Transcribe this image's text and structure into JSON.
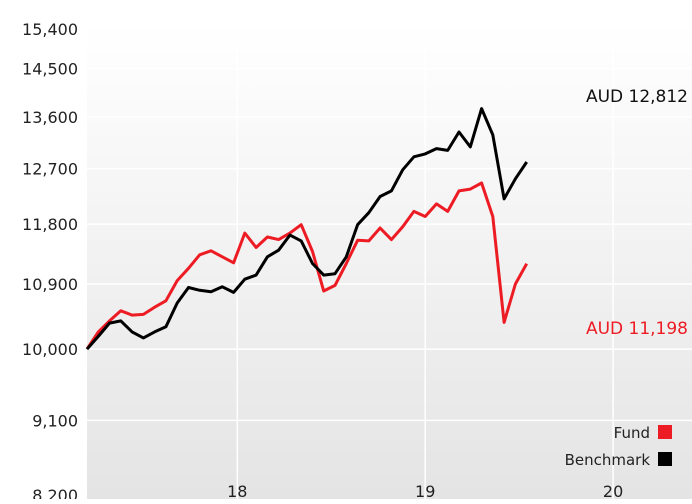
{
  "chart_data": {
    "type": "line",
    "title": "",
    "xlabel": "",
    "ylabel": "",
    "ylim": [
      8200,
      15400
    ],
    "y_scale": "log",
    "y_ticks": [
      8200,
      9100,
      10000,
      10900,
      11800,
      12700,
      13600,
      14500,
      15400
    ],
    "y_tick_labels": [
      "8,200",
      "9,100",
      "10,000",
      "10,900",
      "11,800",
      "12,700",
      "13,600",
      "14,500",
      "15,400"
    ],
    "x_range": [
      2017.2,
      2020.42
    ],
    "x_ticks": [
      2018,
      2019,
      2020
    ],
    "x_tick_labels": [
      "18",
      "19",
      "20"
    ],
    "grid": true,
    "legend_position": "bottom-right",
    "x": [
      2017.2,
      2017.26,
      2017.32,
      2017.38,
      2017.44,
      2017.5,
      2017.56,
      2017.62,
      2017.68,
      2017.74,
      2017.8,
      2017.86,
      2017.92,
      2017.98,
      2018.04,
      2018.1,
      2018.16,
      2018.22,
      2018.28,
      2018.34,
      2018.4,
      2018.46,
      2018.52,
      2018.58,
      2018.64,
      2018.7,
      2018.76,
      2018.82,
      2018.88,
      2018.94,
      2019.0,
      2019.06,
      2019.12,
      2019.18,
      2019.24,
      2019.3,
      2019.36,
      2019.42,
      2019.48,
      2019.54,
      2019.6,
      2019.66,
      2019.72,
      2019.78,
      2019.84,
      2019.9,
      2019.96,
      2020.02,
      2020.08,
      2020.14,
      2020.2,
      2020.26,
      2020.32,
      2020.38,
      2020.42
    ],
    "series": [
      {
        "name": "Fund",
        "color": "#ed1c24",
        "end_label": "AUD 11,198",
        "values": [
          10000,
          10230,
          10380,
          10520,
          10460,
          10470,
          10570,
          10660,
          10950,
          11130,
          11330,
          11390,
          11300,
          11210,
          11660,
          11440,
          11600,
          11560,
          11660,
          11790,
          11380,
          10800,
          10880,
          11200,
          11550,
          11540,
          11740,
          11560,
          11760,
          12000,
          11920,
          12120,
          12000,
          12330,
          12360,
          12460,
          11920,
          10360,
          10900,
          11198,
          11198,
          11198,
          11198,
          11198,
          11198,
          11198,
          11198,
          11198,
          11198,
          11198,
          11198,
          11198,
          11198,
          11198,
          11198
        ]
      },
      {
        "name": "Benchmark",
        "color": "#000000",
        "end_label": "AUD 12,812",
        "values": [
          10000,
          10170,
          10350,
          10380,
          10230,
          10150,
          10230,
          10300,
          10630,
          10850,
          10810,
          10790,
          10860,
          10780,
          10970,
          11030,
          11300,
          11400,
          11630,
          11540,
          11200,
          11030,
          11050,
          11300,
          11790,
          11980,
          12240,
          12330,
          12680,
          12900,
          12950,
          13040,
          13010,
          13330,
          13070,
          13750,
          13280,
          12200,
          12530,
          12812,
          12812,
          12812,
          12812,
          12812,
          12812,
          12812,
          12812,
          12812,
          12812,
          12812,
          12812,
          12812,
          12812,
          12812,
          12812
        ]
      }
    ]
  }
}
